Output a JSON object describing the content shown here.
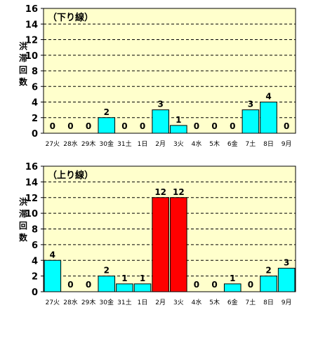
{
  "chart_data": [
    {
      "type": "bar",
      "title": "（下り線）",
      "ylabel": "洪滞回数",
      "ylim": [
        0,
        16
      ],
      "yticks": [
        0,
        2,
        4,
        6,
        8,
        10,
        12,
        14,
        16
      ],
      "categories": [
        "27火",
        "28水",
        "29木",
        "30金",
        "31土",
        "1日",
        "2月",
        "3火",
        "4水",
        "5木",
        "6金",
        "7土",
        "8日",
        "9月"
      ],
      "values": [
        0,
        0,
        0,
        2,
        0,
        0,
        3,
        1,
        0,
        0,
        0,
        3,
        4,
        0
      ],
      "bar_color": "#00ffff",
      "highlight_color": "#ff0000",
      "highlight_threshold": 10,
      "plot_background": "#ffffcc",
      "grid": true,
      "grid_style": "dashed"
    },
    {
      "type": "bar",
      "title": "（上り線）",
      "ylabel": "洪滞回数",
      "ylim": [
        0,
        16
      ],
      "yticks": [
        0,
        2,
        4,
        6,
        8,
        10,
        12,
        14,
        16
      ],
      "categories": [
        "27火",
        "28水",
        "29木",
        "30金",
        "31土",
        "1日",
        "2月",
        "3火",
        "4水",
        "5木",
        "6金",
        "7土",
        "8日",
        "9月"
      ],
      "values": [
        4,
        0,
        0,
        2,
        1,
        1,
        12,
        12,
        0,
        0,
        1,
        0,
        2,
        3
      ],
      "bar_color": "#00ffff",
      "highlight_color": "#ff0000",
      "highlight_threshold": 10,
      "plot_background": "#ffffcc",
      "grid": true,
      "grid_style": "dashed"
    }
  ]
}
